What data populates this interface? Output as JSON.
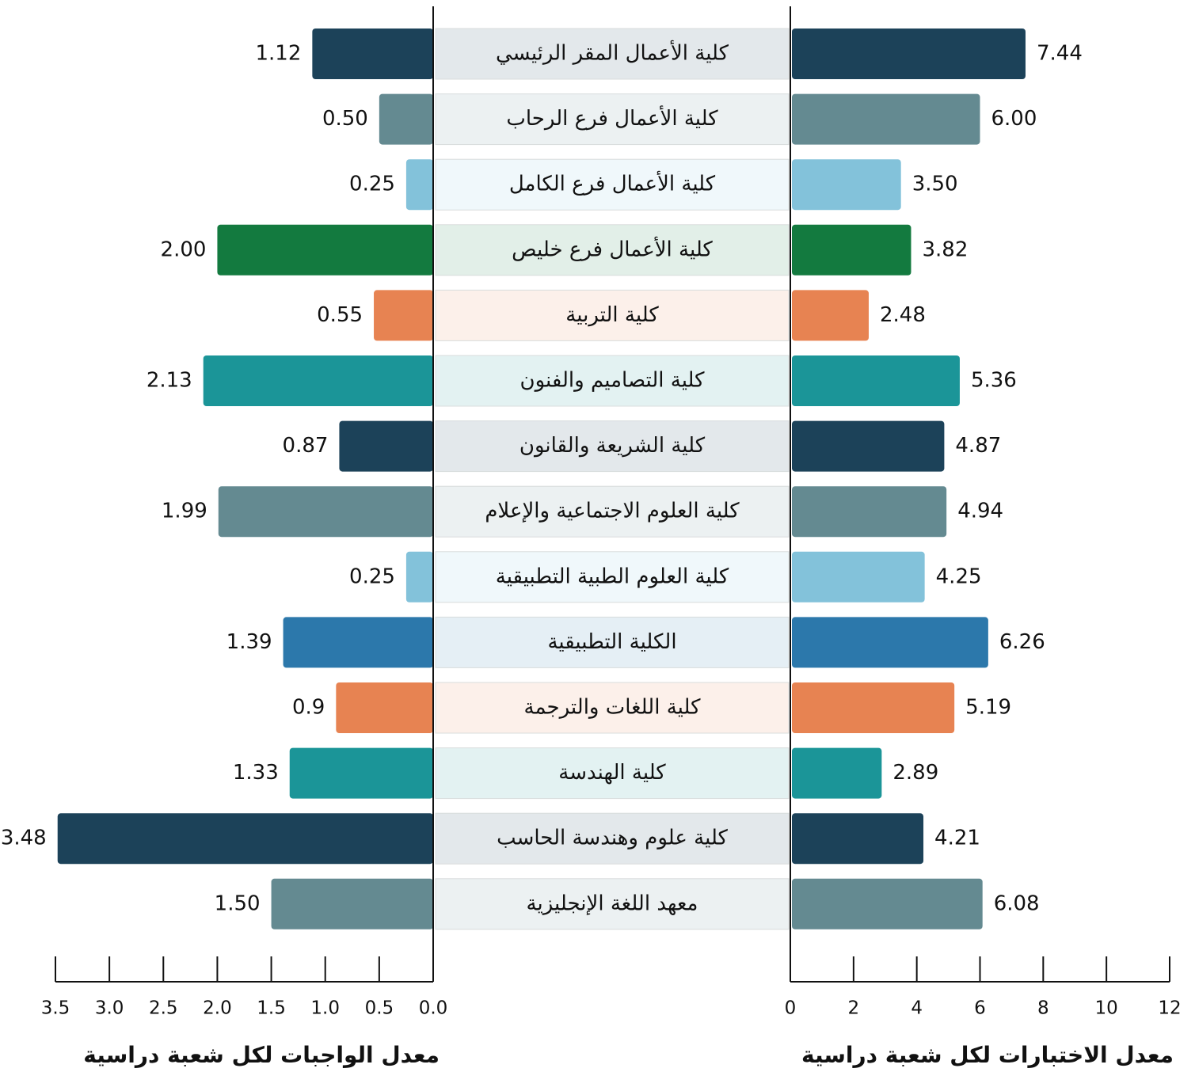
{
  "chart_data": {
    "type": "butterfly",
    "categories": [
      "كلية الأعمال المقر الرئيسي",
      "كلية الأعمال فرع الرحاب",
      "كلية الأعمال فرع الكامل",
      "كلية الأعمال فرع خليص",
      "كلية التربية",
      "كلية التصاميم والفنون",
      "كلية الشريعة والقانون",
      "كلية العلوم الاجتماعية والإعلام",
      "كلية العلوم الطبية التطبيقية",
      "الكلية التطبيقية",
      "كلية اللغات والترجمة",
      "كلية الهندسة",
      "كلية علوم وهندسة الحاسب",
      "معهد اللغة الإنجليزية"
    ],
    "colors": [
      "#1c4259",
      "#648a91",
      "#83c2da",
      "#137a3f",
      "#e78352",
      "#1b9598",
      "#1c4259",
      "#648a91",
      "#83c2da",
      "#2c78ab",
      "#e78352",
      "#1b9598",
      "#1c4259",
      "#648a91"
    ],
    "left": {
      "title": "معدل الواجبات لكل شعبة دراسية",
      "values": [
        1.12,
        0.5,
        0.25,
        2,
        0.55,
        2.13,
        0.87,
        1.99,
        0.25,
        1.39,
        0.9,
        1.33,
        3.48,
        1.5
      ],
      "value_labels": [
        "1.12",
        "0.50",
        "0.25",
        "2.00",
        "0.55",
        "2.13",
        "0.87",
        "1.99",
        "0.25",
        "1.39",
        "0.9",
        "1.33",
        "3.48",
        "1.50"
      ],
      "xlim": [
        0,
        3.5
      ],
      "xticks": [
        3.5,
        {
          "value": 3,
          "label": "3.0"
        },
        2.5,
        {
          "value": 2,
          "label": "2.0"
        },
        1.5,
        {
          "value": 1,
          "label": "1.0"
        },
        0.5,
        {
          "value": 0,
          "label": "0.0"
        }
      ]
    },
    "right": {
      "title": "معدل الاختبارات لكل شعبة دراسية",
      "values": [
        7.44,
        6,
        3.5,
        3.82,
        2.48,
        5.36,
        4.87,
        4.94,
        4.25,
        6.26,
        5.19,
        2.89,
        4.21,
        6.08
      ],
      "value_labels": [
        "7.44",
        "6.00",
        "3.50",
        "3.82",
        "2.48",
        "5.36",
        "4.87",
        "4.94",
        "4.25",
        "6.26",
        "5.19",
        "2.89",
        "4.21",
        "6.08"
      ],
      "xlim": [
        0,
        12
      ],
      "xticks": [
        0,
        2,
        4,
        6,
        8,
        10,
        12
      ]
    }
  }
}
